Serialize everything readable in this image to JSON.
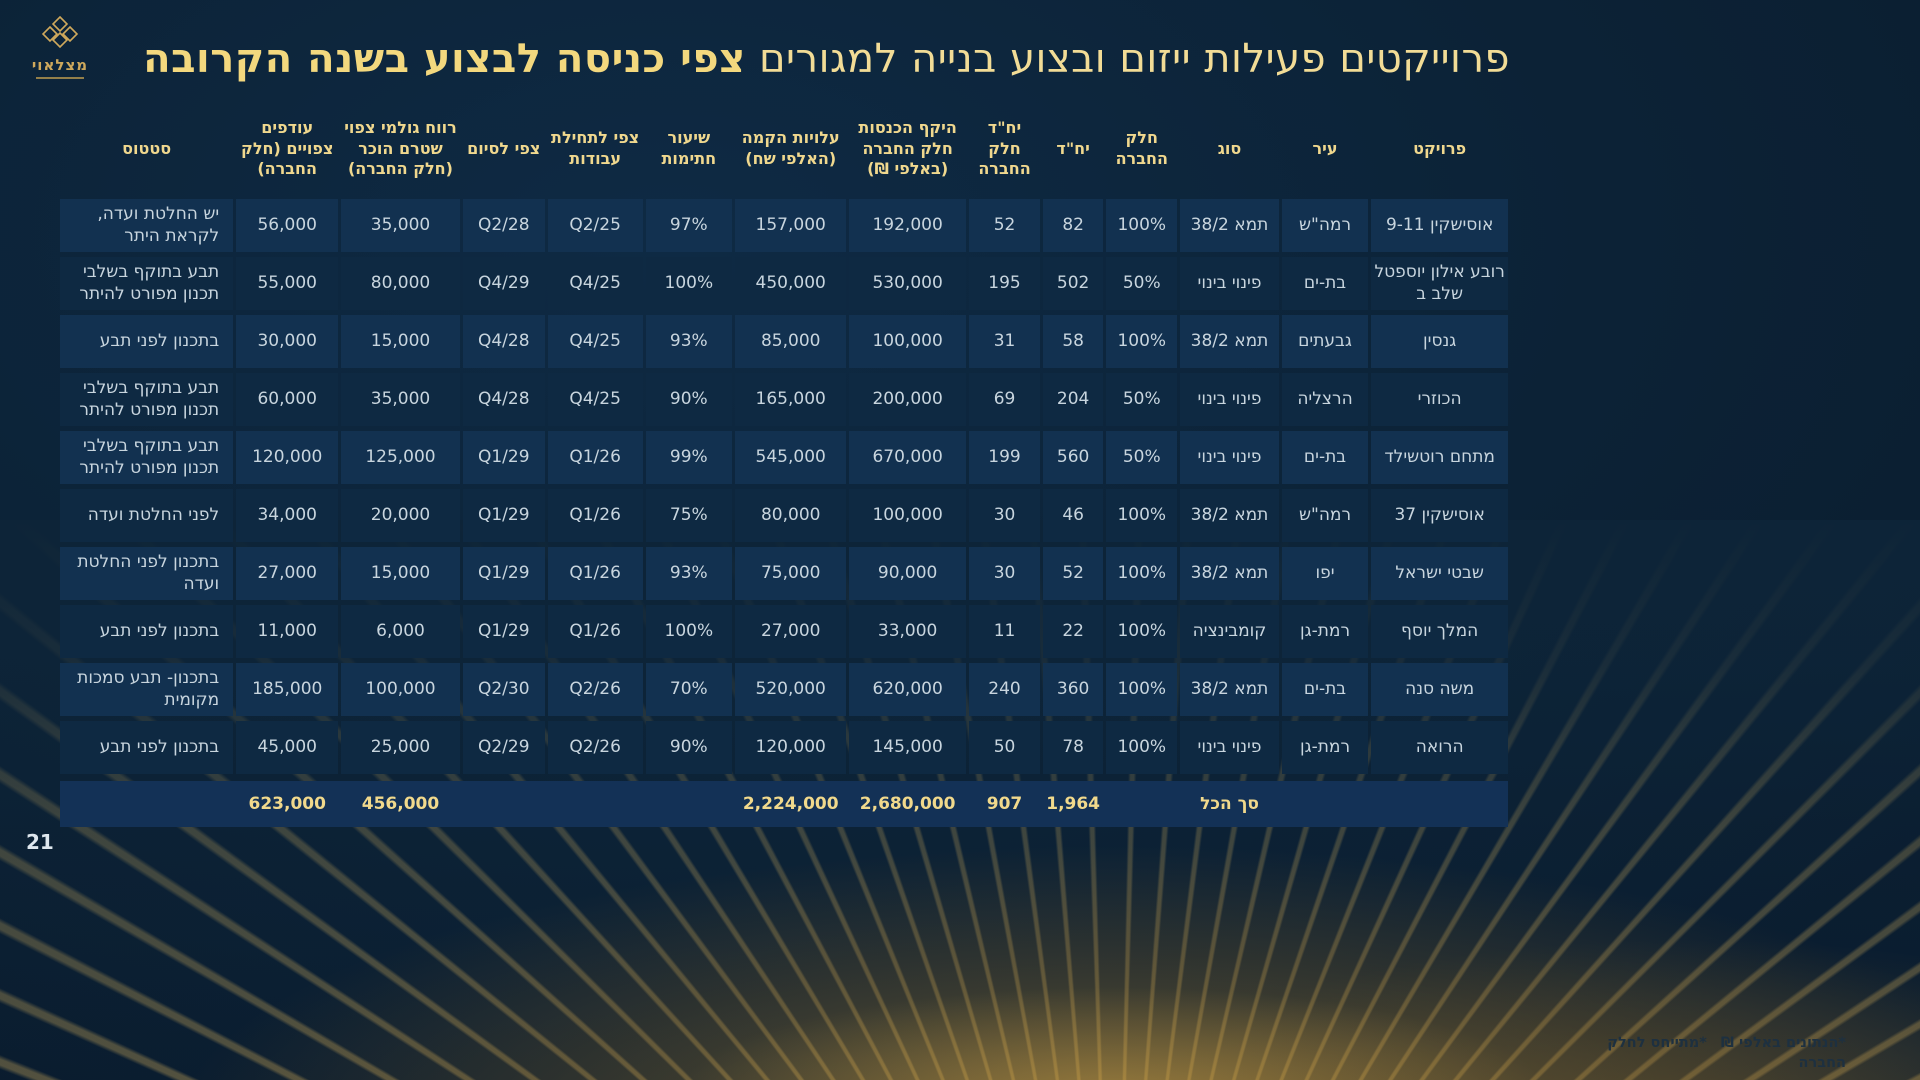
{
  "slide": {
    "logo_text": "מצלאוי",
    "title_regular": "פרוייקטים פעילות ייזום ובצוע בנייה למגורים ",
    "title_bold": "צפי כניסה לבצוע בשנה הקרובה",
    "page_number": "21",
    "footnotes": [
      "*הנתונים באלפי ₪",
      "*מתייחס לחלק החברה"
    ]
  },
  "colors": {
    "background": "#0d2438",
    "gold_header": "#f0d88e",
    "title_gold": "#f2dc96",
    "data_text": "#c8d5de",
    "row_light": "#123150",
    "row_dark": "#0e2942",
    "total_band": "#133156",
    "glow_amber": "#c69434"
  },
  "table": {
    "columns": [
      {
        "key": "project",
        "label": "פרויקט"
      },
      {
        "key": "city",
        "label": "עיר"
      },
      {
        "key": "type",
        "label": "סוג"
      },
      {
        "key": "share",
        "label": "חלק החברה"
      },
      {
        "key": "units",
        "label": "יח\"ד"
      },
      {
        "key": "units_share",
        "label": "יח\"ד חלק החברה"
      },
      {
        "key": "revenue",
        "label": "היקף הכנסות חלק החברה (באלפי ₪)"
      },
      {
        "key": "cost",
        "label": "עלויות הקמה (האלפי שח)"
      },
      {
        "key": "signatures",
        "label": "שיעור חתימות"
      },
      {
        "key": "start",
        "label": "צפי לתחילת עבודות"
      },
      {
        "key": "end",
        "label": "צפי לסיום"
      },
      {
        "key": "profit",
        "label": "רווח גולמי צפוי שטרם הוכר (חלק החברה)"
      },
      {
        "key": "surplus",
        "label": "עודפים צפויים (חלק החברה)"
      },
      {
        "key": "status",
        "label": "סטטוס"
      }
    ],
    "rows": [
      {
        "project": "אוסישקין 9-11",
        "city": "רמה\"ש",
        "type": "תמא 38/2",
        "share": "100%",
        "units": "82",
        "units_share": "52",
        "revenue": "192,000",
        "cost": "157,000",
        "signatures": "97%",
        "start": "Q2/25",
        "end": "Q2/28",
        "profit": "35,000",
        "surplus": "56,000",
        "status": "יש החלטת ועדה, לקראת היתר"
      },
      {
        "project": "רובע אילון יוספטל שלב ב",
        "city": "בת-ים",
        "type": "פינוי בינוי",
        "share": "50%",
        "units": "502",
        "units_share": "195",
        "revenue": "530,000",
        "cost": "450,000",
        "signatures": "100%",
        "start": "Q4/25",
        "end": "Q4/29",
        "profit": "80,000",
        "surplus": "55,000",
        "status": "תבע בתוקף בשלבי תכנון מפורט להיתר"
      },
      {
        "project": "גנסין",
        "city": "גבעתים",
        "type": "תמא 38/2",
        "share": "100%",
        "units": "58",
        "units_share": "31",
        "revenue": "100,000",
        "cost": "85,000",
        "signatures": "93%",
        "start": "Q4/25",
        "end": "Q4/28",
        "profit": "15,000",
        "surplus": "30,000",
        "status": "בתכנון לפני תבע"
      },
      {
        "project": "הכוזרי",
        "city": "הרצליה",
        "type": "פינוי בינוי",
        "share": "50%",
        "units": "204",
        "units_share": "69",
        "revenue": "200,000",
        "cost": "165,000",
        "signatures": "90%",
        "start": "Q4/25",
        "end": "Q4/28",
        "profit": "35,000",
        "surplus": "60,000",
        "status": "תבע בתוקף בשלבי תכנון מפורט להיתר"
      },
      {
        "project": "מתחם רוטשילד",
        "city": "בת-ים",
        "type": "פינוי בינוי",
        "share": "50%",
        "units": "560",
        "units_share": "199",
        "revenue": "670,000",
        "cost": "545,000",
        "signatures": "99%",
        "start": "Q1/26",
        "end": "Q1/29",
        "profit": "125,000",
        "surplus": "120,000",
        "status": "תבע בתוקף בשלבי תכנון מפורט להיתר"
      },
      {
        "project": "אוסישקין 37",
        "city": "רמה\"ש",
        "type": "תמא 38/2",
        "share": "100%",
        "units": "46",
        "units_share": "30",
        "revenue": "100,000",
        "cost": "80,000",
        "signatures": "75%",
        "start": "Q1/26",
        "end": "Q1/29",
        "profit": "20,000",
        "surplus": "34,000",
        "status": "לפני החלטת ועדה"
      },
      {
        "project": "שבטי ישראל",
        "city": "יפו",
        "type": "תמא 38/2",
        "share": "100%",
        "units": "52",
        "units_share": "30",
        "revenue": "90,000",
        "cost": "75,000",
        "signatures": "93%",
        "start": "Q1/26",
        "end": "Q1/29",
        "profit": "15,000",
        "surplus": "27,000",
        "status": "בתכנון לפני החלטת ועדה"
      },
      {
        "project": "המלך יוסף",
        "city": "רמת-גן",
        "type": "קומבינציה",
        "share": "100%",
        "units": "22",
        "units_share": "11",
        "revenue": "33,000",
        "cost": "27,000",
        "signatures": "100%",
        "start": "Q1/26",
        "end": "Q1/29",
        "profit": "6,000",
        "surplus": "11,000",
        "status": "בתכנון לפני תבע"
      },
      {
        "project": "משה סנה",
        "city": "בת-ים",
        "type": "תמא 38/2",
        "share": "100%",
        "units": "360",
        "units_share": "240",
        "revenue": "620,000",
        "cost": "520,000",
        "signatures": "70%",
        "start": "Q2/26",
        "end": "Q2/30",
        "profit": "100,000",
        "surplus": "185,000",
        "status": "בתכנון- תבע סמכות מקומית"
      },
      {
        "project": "הרואה",
        "city": "רמת-גן",
        "type": "פינוי בינוי",
        "share": "100%",
        "units": "78",
        "units_share": "50",
        "revenue": "145,000",
        "cost": "120,000",
        "signatures": "90%",
        "start": "Q2/26",
        "end": "Q2/29",
        "profit": "25,000",
        "surplus": "45,000",
        "status": "בתכנון לפני תבע"
      }
    ],
    "total": {
      "label": "סך הכל",
      "label_column": "type",
      "values": {
        "units": "1,964",
        "units_share": "907",
        "revenue": "2,680,000",
        "cost": "2,224,000",
        "profit": "456,000",
        "surplus": "623,000"
      }
    }
  }
}
